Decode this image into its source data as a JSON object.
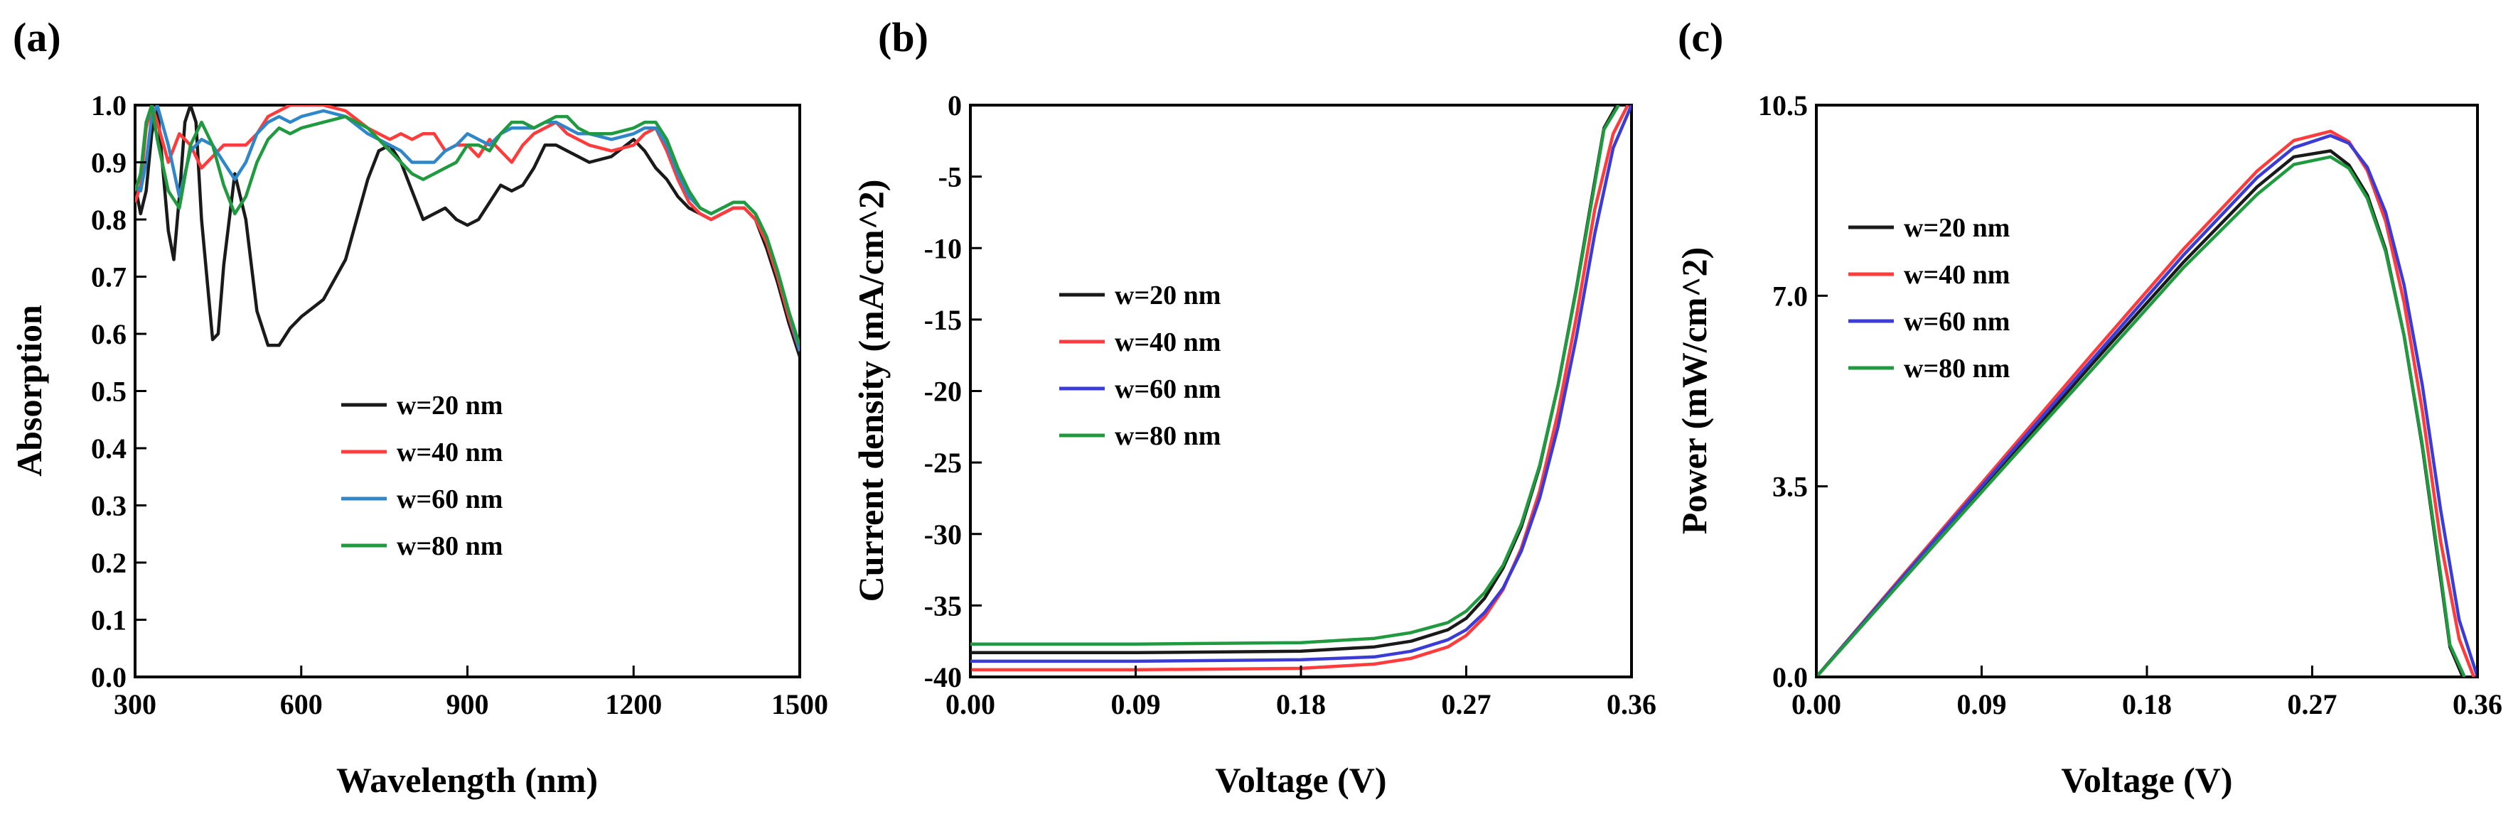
{
  "colors": {
    "w20": "#1a1a1a",
    "w40": "#ff3b3b",
    "w60a": "#2f86c8",
    "w60bc": "#3b3bd6",
    "w80": "#1f9a3e",
    "axis": "#000000"
  },
  "chart_data": [
    {
      "panel_label": "(a)",
      "type": "line",
      "xlabel": "Wavelength (nm)",
      "ylabel": "Absorption",
      "xlim": [
        300,
        1500
      ],
      "ylim": [
        0.0,
        1.0
      ],
      "xticks": [
        "300",
        "600",
        "900",
        "1200",
        "1500"
      ],
      "xtick_values": [
        300,
        600,
        900,
        1200,
        1500
      ],
      "yticks": [
        "0.0",
        "0.1",
        "0.2",
        "0.3",
        "0.4",
        "0.5",
        "0.6",
        "0.7",
        "0.8",
        "0.9",
        "1.0"
      ],
      "ytick_values": [
        0.0,
        0.1,
        0.2,
        0.3,
        0.4,
        0.5,
        0.6,
        0.7,
        0.8,
        0.9,
        1.0
      ],
      "legend_position": "center-right",
      "series": [
        {
          "name": "w=20 nm",
          "color_key": "w20",
          "x": [
            300,
            310,
            320,
            330,
            340,
            360,
            370,
            380,
            390,
            400,
            410,
            420,
            440,
            450,
            460,
            480,
            500,
            520,
            540,
            560,
            580,
            600,
            640,
            680,
            700,
            720,
            740,
            760,
            780,
            800,
            820,
            840,
            860,
            880,
            900,
            920,
            940,
            960,
            980,
            1000,
            1020,
            1040,
            1060,
            1080,
            1100,
            1120,
            1160,
            1200,
            1220,
            1240,
            1260,
            1280,
            1300,
            1320,
            1340,
            1360,
            1380,
            1400,
            1420,
            1440,
            1460,
            1480,
            1500
          ],
          "y": [
            0.86,
            0.81,
            0.85,
            0.95,
            1.0,
            0.78,
            0.73,
            0.84,
            0.97,
            1.0,
            0.97,
            0.8,
            0.59,
            0.6,
            0.72,
            0.88,
            0.8,
            0.64,
            0.58,
            0.58,
            0.61,
            0.63,
            0.66,
            0.73,
            0.8,
            0.87,
            0.92,
            0.93,
            0.9,
            0.85,
            0.8,
            0.81,
            0.82,
            0.8,
            0.79,
            0.8,
            0.83,
            0.86,
            0.85,
            0.86,
            0.89,
            0.93,
            0.93,
            0.92,
            0.91,
            0.9,
            0.91,
            0.94,
            0.92,
            0.89,
            0.87,
            0.84,
            0.82,
            0.81,
            0.8,
            0.81,
            0.82,
            0.82,
            0.8,
            0.75,
            0.69,
            0.62,
            0.56
          ]
        },
        {
          "name": "w=40 nm",
          "color_key": "w40",
          "x": [
            300,
            310,
            320,
            330,
            340,
            360,
            380,
            400,
            420,
            440,
            460,
            480,
            500,
            520,
            540,
            560,
            580,
            600,
            640,
            680,
            720,
            760,
            780,
            800,
            820,
            840,
            860,
            880,
            900,
            920,
            940,
            960,
            980,
            1000,
            1020,
            1040,
            1060,
            1080,
            1100,
            1120,
            1160,
            1200,
            1220,
            1240,
            1260,
            1280,
            1300,
            1320,
            1340,
            1360,
            1380,
            1400,
            1420,
            1440,
            1460,
            1480,
            1500
          ],
          "y": [
            0.83,
            0.86,
            0.96,
            1.0,
            0.97,
            0.9,
            0.95,
            0.93,
            0.89,
            0.91,
            0.93,
            0.93,
            0.93,
            0.95,
            0.98,
            0.99,
            1.0,
            1.0,
            1.0,
            0.99,
            0.96,
            0.94,
            0.95,
            0.94,
            0.95,
            0.95,
            0.92,
            0.93,
            0.93,
            0.91,
            0.94,
            0.92,
            0.9,
            0.93,
            0.95,
            0.96,
            0.97,
            0.95,
            0.94,
            0.93,
            0.92,
            0.93,
            0.95,
            0.96,
            0.92,
            0.87,
            0.83,
            0.81,
            0.8,
            0.81,
            0.82,
            0.82,
            0.8,
            0.76,
            0.7,
            0.63,
            0.57
          ]
        },
        {
          "name": "w=60 nm",
          "color_key": "w60a",
          "x": [
            300,
            310,
            320,
            330,
            340,
            360,
            380,
            400,
            420,
            440,
            460,
            480,
            500,
            520,
            540,
            560,
            580,
            600,
            640,
            680,
            720,
            760,
            780,
            800,
            820,
            840,
            860,
            880,
            900,
            920,
            940,
            960,
            980,
            1000,
            1020,
            1040,
            1060,
            1080,
            1100,
            1120,
            1160,
            1200,
            1220,
            1240,
            1260,
            1280,
            1300,
            1320,
            1340,
            1360,
            1380,
            1400,
            1420,
            1440,
            1460,
            1480,
            1500
          ],
          "y": [
            0.86,
            0.85,
            0.9,
            0.98,
            1.0,
            0.93,
            0.84,
            0.92,
            0.94,
            0.93,
            0.9,
            0.87,
            0.9,
            0.95,
            0.97,
            0.98,
            0.97,
            0.98,
            0.99,
            0.98,
            0.95,
            0.93,
            0.92,
            0.9,
            0.9,
            0.9,
            0.92,
            0.93,
            0.95,
            0.94,
            0.93,
            0.95,
            0.96,
            0.96,
            0.96,
            0.97,
            0.97,
            0.96,
            0.95,
            0.95,
            0.94,
            0.95,
            0.96,
            0.96,
            0.93,
            0.88,
            0.84,
            0.82,
            0.81,
            0.82,
            0.83,
            0.83,
            0.81,
            0.77,
            0.71,
            0.64,
            0.57
          ]
        },
        {
          "name": "w=80 nm",
          "color_key": "w80",
          "x": [
            300,
            310,
            320,
            330,
            340,
            360,
            380,
            400,
            420,
            440,
            460,
            480,
            500,
            520,
            540,
            560,
            580,
            600,
            640,
            680,
            720,
            760,
            780,
            800,
            820,
            840,
            860,
            880,
            900,
            920,
            940,
            960,
            980,
            1000,
            1020,
            1040,
            1060,
            1080,
            1100,
            1120,
            1160,
            1200,
            1220,
            1240,
            1260,
            1280,
            1300,
            1320,
            1340,
            1360,
            1380,
            1400,
            1420,
            1440,
            1460,
            1480,
            1500
          ],
          "y": [
            0.85,
            0.88,
            0.97,
            1.0,
            0.94,
            0.85,
            0.82,
            0.93,
            0.97,
            0.93,
            0.86,
            0.81,
            0.84,
            0.9,
            0.94,
            0.96,
            0.95,
            0.96,
            0.97,
            0.98,
            0.96,
            0.92,
            0.9,
            0.88,
            0.87,
            0.88,
            0.89,
            0.9,
            0.93,
            0.93,
            0.92,
            0.95,
            0.97,
            0.97,
            0.96,
            0.97,
            0.98,
            0.98,
            0.96,
            0.95,
            0.95,
            0.96,
            0.97,
            0.97,
            0.94,
            0.89,
            0.85,
            0.82,
            0.81,
            0.82,
            0.83,
            0.83,
            0.81,
            0.77,
            0.71,
            0.64,
            0.58
          ]
        }
      ]
    },
    {
      "panel_label": "(b)",
      "type": "line",
      "xlabel": "Voltage (V)",
      "ylabel": "Current density (mA/cm^2)",
      "xlim": [
        0.0,
        0.36
      ],
      "ylim": [
        -40,
        0
      ],
      "xticks": [
        "0.00",
        "0.09",
        "0.18",
        "0.27",
        "0.36"
      ],
      "xtick_values": [
        0.0,
        0.09,
        0.18,
        0.27,
        0.36
      ],
      "yticks": [
        "0",
        "-5",
        "-10",
        "-15",
        "-20",
        "-25",
        "-30",
        "-35",
        "-40"
      ],
      "ytick_values": [
        0,
        -5,
        -10,
        -15,
        -20,
        -25,
        -30,
        -35,
        -40
      ],
      "legend_position": "center-left",
      "series": [
        {
          "name": "w=20 nm",
          "color_key": "w20",
          "x": [
            0.0,
            0.09,
            0.18,
            0.22,
            0.24,
            0.26,
            0.27,
            0.28,
            0.29,
            0.3,
            0.31,
            0.32,
            0.33,
            0.34,
            0.345,
            0.352
          ],
          "y": [
            -38.3,
            -38.3,
            -38.2,
            -37.9,
            -37.5,
            -36.7,
            -35.9,
            -34.5,
            -32.4,
            -29.5,
            -25.3,
            -19.6,
            -12.8,
            -5.3,
            -1.6,
            0.0
          ]
        },
        {
          "name": "w=40 nm",
          "color_key": "w40",
          "x": [
            0.0,
            0.09,
            0.18,
            0.22,
            0.24,
            0.26,
            0.27,
            0.28,
            0.29,
            0.3,
            0.31,
            0.32,
            0.33,
            0.34,
            0.35,
            0.358
          ],
          "y": [
            -39.5,
            -39.5,
            -39.4,
            -39.1,
            -38.7,
            -37.9,
            -37.1,
            -35.8,
            -33.9,
            -31.0,
            -27.0,
            -21.5,
            -14.8,
            -7.3,
            -2.0,
            0.0
          ]
        },
        {
          "name": "w=60 nm",
          "color_key": "w60bc",
          "x": [
            0.0,
            0.09,
            0.18,
            0.22,
            0.24,
            0.26,
            0.27,
            0.28,
            0.29,
            0.3,
            0.31,
            0.32,
            0.33,
            0.34,
            0.35,
            0.36
          ],
          "y": [
            -38.9,
            -38.9,
            -38.8,
            -38.6,
            -38.2,
            -37.4,
            -36.7,
            -35.5,
            -33.8,
            -31.2,
            -27.5,
            -22.5,
            -16.2,
            -9.0,
            -3.0,
            0.0
          ]
        },
        {
          "name": "w=80 nm",
          "color_key": "w80",
          "x": [
            0.0,
            0.09,
            0.18,
            0.22,
            0.24,
            0.26,
            0.27,
            0.28,
            0.29,
            0.3,
            0.31,
            0.32,
            0.33,
            0.34,
            0.345,
            0.353
          ],
          "y": [
            -37.7,
            -37.7,
            -37.6,
            -37.3,
            -36.9,
            -36.2,
            -35.4,
            -34.1,
            -32.2,
            -29.3,
            -25.2,
            -19.6,
            -12.9,
            -5.5,
            -1.7,
            0.0
          ]
        }
      ]
    },
    {
      "panel_label": "(c)",
      "type": "line",
      "xlabel": "Voltage (V)",
      "ylabel": "Power (mW/cm^2)",
      "xlim": [
        0.0,
        0.36
      ],
      "ylim": [
        0.0,
        10.5
      ],
      "xticks": [
        "0.00",
        "0.09",
        "0.18",
        "0.27",
        "0.36"
      ],
      "xtick_values": [
        0.0,
        0.09,
        0.18,
        0.27,
        0.36
      ],
      "yticks": [
        "0.0",
        "3.5",
        "7.0",
        "10.5"
      ],
      "ytick_values": [
        0.0,
        3.5,
        7.0,
        10.5
      ],
      "legend_position": "top-left",
      "series": [
        {
          "name": "w=20 nm",
          "color_key": "w20",
          "x": [
            0.0,
            0.05,
            0.1,
            0.15,
            0.2,
            0.24,
            0.26,
            0.28,
            0.29,
            0.3,
            0.31,
            0.32,
            0.33,
            0.34,
            0.345,
            0.352
          ],
          "y": [
            0.0,
            1.92,
            3.83,
            5.74,
            7.62,
            9.0,
            9.55,
            9.66,
            9.4,
            8.85,
            7.85,
            6.27,
            4.22,
            1.8,
            0.55,
            0.0
          ]
        },
        {
          "name": "w=40 nm",
          "color_key": "w40",
          "x": [
            0.0,
            0.05,
            0.1,
            0.15,
            0.2,
            0.24,
            0.26,
            0.28,
            0.29,
            0.3,
            0.31,
            0.32,
            0.33,
            0.34,
            0.35,
            0.358
          ],
          "y": [
            0.0,
            1.98,
            3.95,
            5.92,
            7.86,
            9.29,
            9.85,
            10.02,
            9.83,
            9.3,
            8.37,
            6.88,
            4.88,
            2.48,
            0.7,
            0.0
          ]
        },
        {
          "name": "w=60 nm",
          "color_key": "w60bc",
          "x": [
            0.0,
            0.05,
            0.1,
            0.15,
            0.2,
            0.24,
            0.26,
            0.28,
            0.29,
            0.3,
            0.31,
            0.32,
            0.33,
            0.34,
            0.35,
            0.36
          ],
          "y": [
            0.0,
            1.95,
            3.89,
            5.82,
            7.75,
            9.17,
            9.72,
            9.94,
            9.8,
            9.36,
            8.53,
            7.2,
            5.35,
            3.06,
            1.05,
            0.0
          ]
        },
        {
          "name": "w=80 nm",
          "color_key": "w80",
          "x": [
            0.0,
            0.05,
            0.1,
            0.15,
            0.2,
            0.24,
            0.26,
            0.28,
            0.29,
            0.3,
            0.31,
            0.32,
            0.33,
            0.34,
            0.345,
            0.353
          ],
          "y": [
            0.0,
            1.89,
            3.77,
            5.64,
            7.52,
            8.86,
            9.41,
            9.55,
            9.34,
            8.79,
            7.81,
            6.27,
            4.26,
            1.87,
            0.59,
            0.0
          ]
        }
      ]
    }
  ]
}
